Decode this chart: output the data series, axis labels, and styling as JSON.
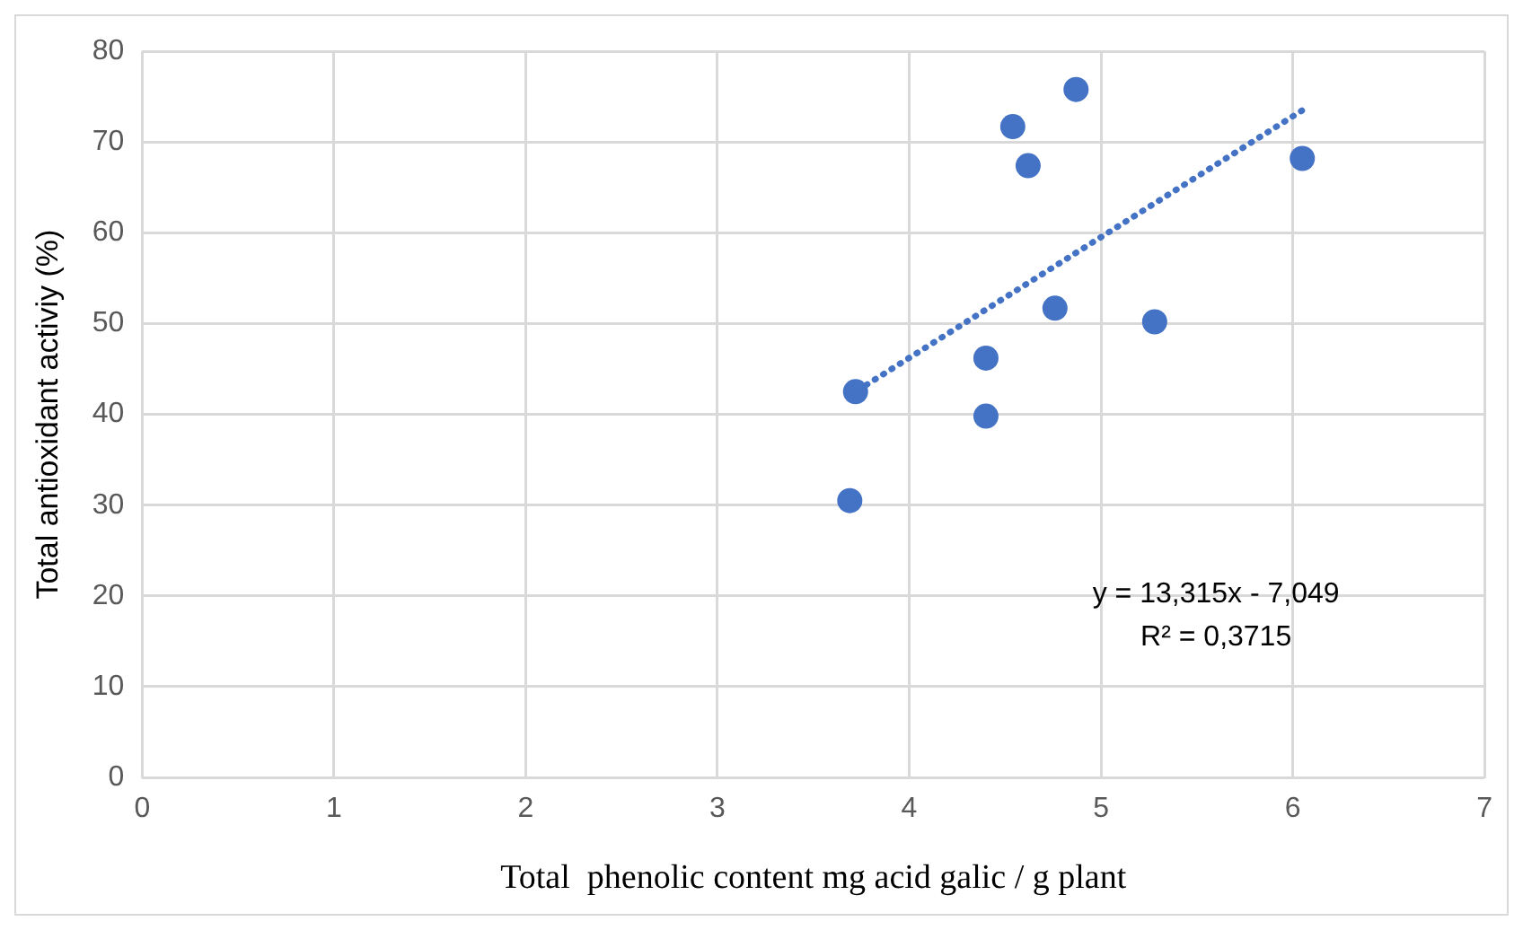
{
  "chart_data": {
    "type": "scatter",
    "xlabel": "Total  phenolic content mg acid galic / g plant",
    "ylabel": "Total antioxidant activiy (%)",
    "xlim": [
      0,
      7
    ],
    "xticks": [
      0,
      1,
      2,
      3,
      4,
      5,
      6,
      7
    ],
    "ylim": [
      0,
      80
    ],
    "yticks": [
      0,
      10,
      20,
      30,
      40,
      50,
      60,
      70,
      80
    ],
    "grid": true,
    "legend": false,
    "marker": "circle",
    "series": [
      {
        "type": "scatter",
        "color": "#4472c4",
        "x": [
          3.69,
          3.72,
          4.4,
          4.4,
          4.76,
          5.28,
          4.62,
          4.54,
          4.87,
          6.05
        ],
        "values": [
          30.5,
          42.5,
          39.8,
          46.2,
          51.7,
          50.2,
          67.4,
          71.7,
          75.8,
          68.2
        ]
      },
      {
        "type": "line",
        "color": "#4472c4",
        "line_style": "dotted",
        "marker": "none",
        "x": [
          3.69,
          6.05
        ],
        "values": [
          42.1,
          73.5
        ]
      }
    ],
    "annotations": [
      "y = 13,315x - 7,049",
      "R² = 0,3715"
    ]
  }
}
